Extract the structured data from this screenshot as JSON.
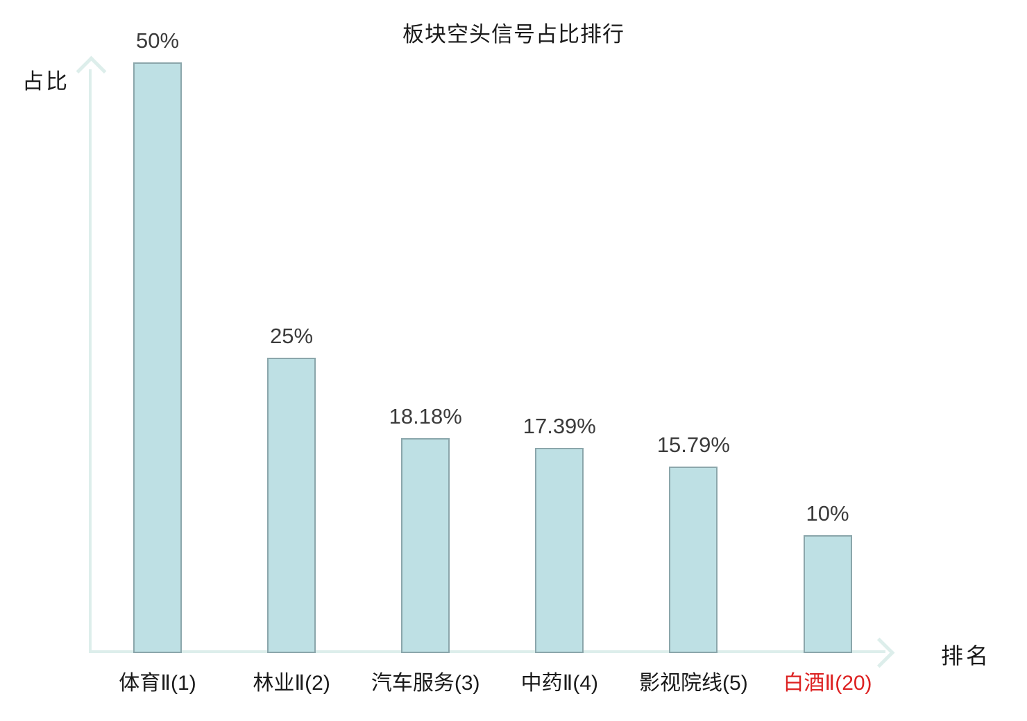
{
  "chart_data": {
    "type": "bar",
    "title": "板块空头信号占比排行",
    "xlabel": "排名",
    "ylabel": "占比",
    "categories": [
      "体育Ⅱ(1)",
      "林业Ⅱ(2)",
      "汽车服务(3)",
      "中药Ⅱ(4)",
      "影视院线(5)",
      "白酒Ⅱ(20)"
    ],
    "values": [
      50,
      25,
      18.18,
      17.39,
      15.79,
      10
    ],
    "value_labels": [
      "50%",
      "25%",
      "18.18%",
      "17.39%",
      "15.79%",
      "10%"
    ],
    "ylim": [
      0,
      52
    ],
    "grid": false,
    "legend": null,
    "bar_color": "#bee0e4",
    "bar_border_color": "#8ba6ab",
    "axis_color": "#ddeeeb",
    "category_color": "#1a1a1a",
    "highlight_index": 5,
    "highlight_color": "#dd2222"
  }
}
